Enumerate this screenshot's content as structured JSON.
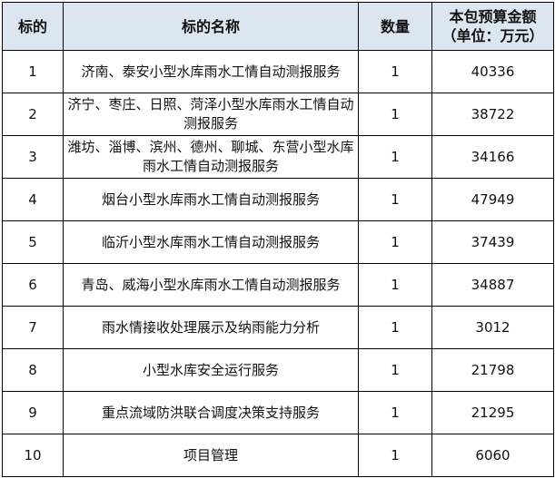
{
  "table": {
    "headers": [
      "标的",
      "标的名称",
      "数量",
      "本包预算金额（单位：万元）"
    ],
    "rows": [
      {
        "id": "1",
        "name": "济南、泰安小型水库雨水工情自动测报服务",
        "qty": "1",
        "budget": "40336"
      },
      {
        "id": "2",
        "name": "济宁、枣庄、日照、菏泽小型水库雨水工情自动测报服务",
        "qty": "1",
        "budget": "38722"
      },
      {
        "id": "3",
        "name": "潍坊、淄博、滨州、德州、聊城、东营小型水库雨水工情自动测报服务",
        "qty": "1",
        "budget": "34166"
      },
      {
        "id": "4",
        "name": "烟台小型水库雨水工情自动测报服务",
        "qty": "1",
        "budget": "47949"
      },
      {
        "id": "5",
        "name": "临沂小型水库雨水工情自动测报服务",
        "qty": "1",
        "budget": "37439"
      },
      {
        "id": "6",
        "name": "青岛、威海小型水库雨水工情自动测报服务",
        "qty": "1",
        "budget": "34887"
      },
      {
        "id": "7",
        "name": "雨水情接收处理展示及纳雨能力分析",
        "qty": "1",
        "budget": "3012"
      },
      {
        "id": "8",
        "name": "小型水库安全运行服务",
        "qty": "1",
        "budget": "21798"
      },
      {
        "id": "9",
        "name": "重点流域防洪联合调度决策支持服务",
        "qty": "1",
        "budget": "21295"
      },
      {
        "id": "10",
        "name": "项目管理",
        "qty": "1",
        "budget": "6060"
      }
    ]
  },
  "colors": {
    "header_bg": "#dce6f1",
    "border": "#000000"
  }
}
